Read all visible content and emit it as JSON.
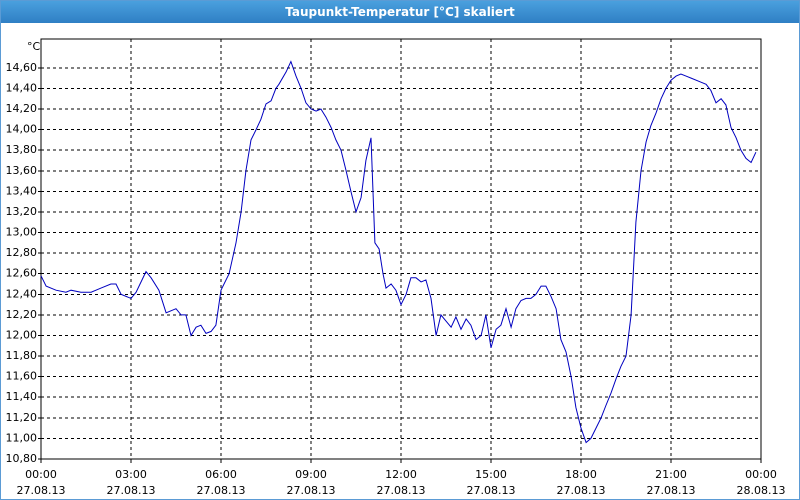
{
  "chart_data": {
    "type": "line",
    "title": "Taupunkt-Temperatur [°C] skaliert",
    "y_unit": "°C",
    "color": "#0000c0",
    "grid": true,
    "xlim": [
      0,
      24
    ],
    "xticks": [
      {
        "value": 0,
        "label": "00:00"
      },
      {
        "value": 3,
        "label": "03:00"
      },
      {
        "value": 6,
        "label": "06:00"
      },
      {
        "value": 9,
        "label": "09:00"
      },
      {
        "value": 12,
        "label": "12:00"
      },
      {
        "value": 15,
        "label": "15:00"
      },
      {
        "value": 18,
        "label": "18:00"
      },
      {
        "value": 21,
        "label": "21:00"
      },
      {
        "value": 24,
        "label": "00:00"
      }
    ],
    "xtick_dates": [
      "27.08.13",
      "27.08.13",
      "27.08.13",
      "27.08.13",
      "27.08.13",
      "27.08.13",
      "27.08.13",
      "27.08.13",
      "28.08.13"
    ],
    "ylim": [
      10.8,
      14.88
    ],
    "yticks": [
      {
        "value": 10.8,
        "label": "10,80"
      },
      {
        "value": 11.0,
        "label": "11,00"
      },
      {
        "value": 11.2,
        "label": "11,20"
      },
      {
        "value": 11.4,
        "label": "11,40"
      },
      {
        "value": 11.6,
        "label": "11,60"
      },
      {
        "value": 11.8,
        "label": "11,80"
      },
      {
        "value": 12.0,
        "label": "12,00"
      },
      {
        "value": 12.2,
        "label": "12,20"
      },
      {
        "value": 12.4,
        "label": "12,40"
      },
      {
        "value": 12.6,
        "label": "12,60"
      },
      {
        "value": 12.8,
        "label": "12,80"
      },
      {
        "value": 13.0,
        "label": "13,00"
      },
      {
        "value": 13.2,
        "label": "13,20"
      },
      {
        "value": 13.4,
        "label": "13,40"
      },
      {
        "value": 13.6,
        "label": "13,60"
      },
      {
        "value": 13.8,
        "label": "13,80"
      },
      {
        "value": 14.0,
        "label": "14,00"
      },
      {
        "value": 14.2,
        "label": "14,20"
      },
      {
        "value": 14.4,
        "label": "14,40"
      },
      {
        "value": 14.6,
        "label": "14,60"
      }
    ],
    "x": [
      0,
      0.17,
      0.5,
      0.83,
      1,
      1.33,
      1.67,
      2,
      2.33,
      2.5,
      2.67,
      3,
      3.17,
      3.5,
      3.67,
      3.93,
      4.17,
      4.5,
      4.67,
      4.83,
      5,
      5.17,
      5.33,
      5.5,
      5.67,
      5.83,
      6,
      6.27,
      6.5,
      6.67,
      6.83,
      7,
      7.17,
      7.33,
      7.5,
      7.67,
      7.83,
      7.93,
      8.17,
      8.33,
      8.5,
      8.67,
      8.83,
      9,
      9.17,
      9.33,
      9.5,
      9.67,
      9.83,
      10,
      10.17,
      10.33,
      10.5,
      10.67,
      10.83,
      11,
      11.13,
      11.27,
      11.4,
      11.5,
      11.67,
      11.83,
      12,
      12.17,
      12.33,
      12.5,
      12.67,
      12.83,
      13,
      13.17,
      13.33,
      13.5,
      13.67,
      13.83,
      14,
      14.17,
      14.33,
      14.5,
      14.67,
      14.83,
      15,
      15.17,
      15.33,
      15.5,
      15.67,
      15.83,
      16,
      16.17,
      16.33,
      16.5,
      16.67,
      16.83,
      17,
      17.17,
      17.33,
      17.5,
      17.67,
      17.83,
      18,
      18.17,
      18.33,
      18.5,
      18.67,
      18.83,
      19,
      19.17,
      19.33,
      19.5,
      19.67,
      19.83,
      20,
      20.17,
      20.33,
      20.5,
      20.67,
      20.83,
      21,
      21.17,
      21.33,
      21.5,
      21.67,
      22,
      22.17,
      22.33,
      22.5,
      22.67,
      22.83,
      23,
      23.17,
      23.33,
      23.5,
      23.67,
      23.83
    ],
    "values": [
      12.58,
      12.48,
      12.44,
      12.42,
      12.44,
      12.42,
      12.42,
      12.46,
      12.5,
      12.5,
      12.4,
      12.36,
      12.42,
      12.62,
      12.56,
      12.44,
      12.22,
      12.26,
      12.2,
      12.2,
      12.0,
      12.08,
      12.1,
      12.02,
      12.04,
      12.1,
      12.44,
      12.6,
      12.9,
      13.2,
      13.6,
      13.9,
      14.0,
      14.1,
      14.25,
      14.28,
      14.4,
      14.44,
      14.56,
      14.66,
      14.52,
      14.4,
      14.26,
      14.2,
      14.18,
      14.2,
      14.12,
      14.02,
      13.9,
      13.8,
      13.6,
      13.4,
      13.2,
      13.34,
      13.7,
      13.92,
      12.9,
      12.84,
      12.6,
      12.46,
      12.5,
      12.44,
      12.3,
      12.4,
      12.56,
      12.56,
      12.52,
      12.54,
      12.36,
      12.0,
      12.2,
      12.14,
      12.08,
      12.18,
      12.06,
      12.16,
      12.1,
      11.96,
      12.0,
      12.2,
      11.88,
      12.06,
      12.1,
      12.26,
      12.08,
      12.26,
      12.34,
      12.36,
      12.36,
      12.4,
      12.48,
      12.48,
      12.38,
      12.26,
      11.96,
      11.84,
      11.6,
      11.3,
      11.1,
      10.96,
      11.0,
      11.1,
      11.2,
      11.32,
      11.44,
      11.58,
      11.7,
      11.8,
      12.2,
      13.1,
      13.6,
      13.88,
      14.04,
      14.16,
      14.3,
      14.4,
      14.48,
      14.52,
      14.54,
      14.52,
      14.5,
      14.46,
      14.44,
      14.38,
      14.26,
      14.3,
      14.24,
      14.02,
      13.92,
      13.8,
      13.72,
      13.68,
      13.78
    ]
  }
}
